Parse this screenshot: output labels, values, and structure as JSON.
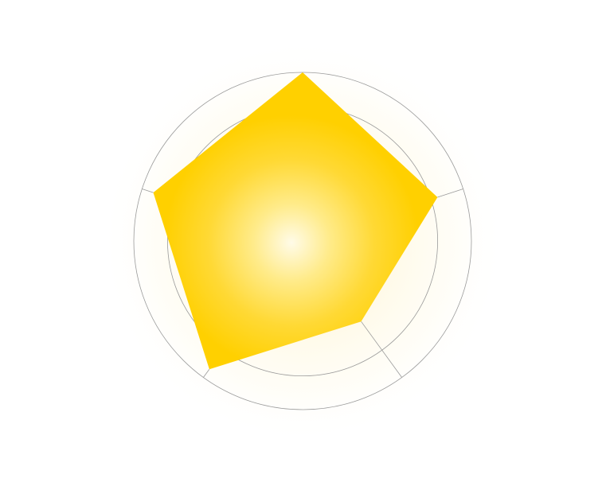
{
  "chart_data": {
    "type": "radar",
    "title": "",
    "axes": [
      "",
      "",
      "",
      "",
      ""
    ],
    "rings": [
      40,
      80,
      100
    ],
    "range": [
      0,
      100
    ],
    "series": [
      {
        "values": [
          100,
          84,
          59,
          94,
          93
        ],
        "color": "#ffd000",
        "glow_color": "#fffbe6"
      }
    ],
    "grid_color": "#9a9a9a",
    "legend": "none"
  }
}
